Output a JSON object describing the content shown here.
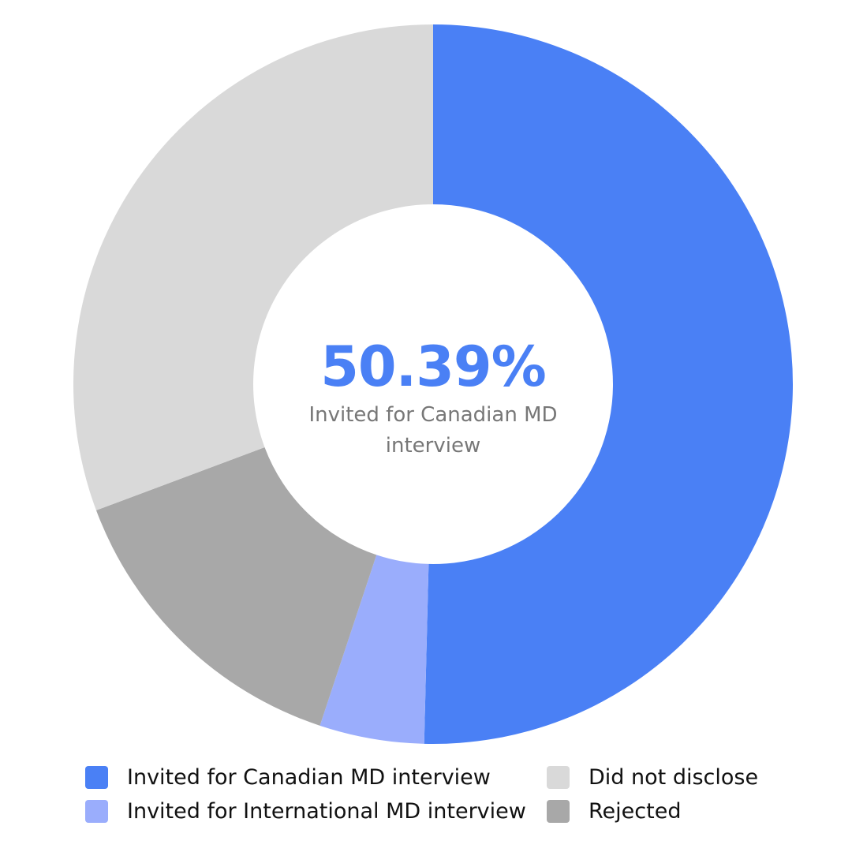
{
  "chart_data": {
    "type": "donut",
    "center_text": "50.39%",
    "center_caption": "Invited for Canadian MD interview",
    "series": [
      {
        "name": "Invited for Canadian MD interview",
        "color": "#4a80f5",
        "value": 50.39
      },
      {
        "name": "Invited for International MD interview",
        "color": "#9aadfc",
        "value": 4.7
      },
      {
        "name": "Rejected",
        "color": "#a8a8a8",
        "value": 14.2
      },
      {
        "name": "Did not disclose",
        "color": "#d9d9d9",
        "value": 30.7
      }
    ]
  }
}
